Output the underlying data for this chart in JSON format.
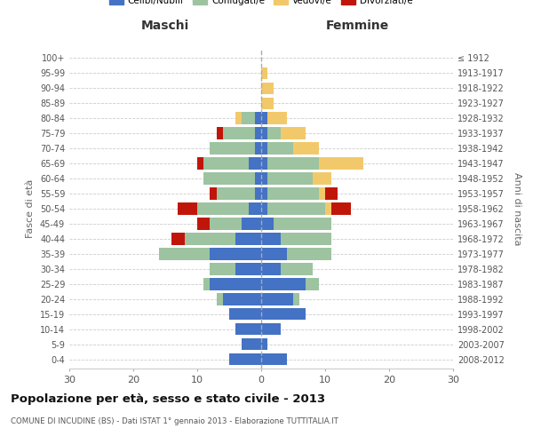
{
  "age_groups": [
    "0-4",
    "5-9",
    "10-14",
    "15-19",
    "20-24",
    "25-29",
    "30-34",
    "35-39",
    "40-44",
    "45-49",
    "50-54",
    "55-59",
    "60-64",
    "65-69",
    "70-74",
    "75-79",
    "80-84",
    "85-89",
    "90-94",
    "95-99",
    "100+"
  ],
  "birth_years": [
    "2008-2012",
    "2003-2007",
    "1998-2002",
    "1993-1997",
    "1988-1992",
    "1983-1987",
    "1978-1982",
    "1973-1977",
    "1968-1972",
    "1963-1967",
    "1958-1962",
    "1953-1957",
    "1948-1952",
    "1943-1947",
    "1938-1942",
    "1933-1937",
    "1928-1932",
    "1923-1927",
    "1918-1922",
    "1913-1917",
    "≤ 1912"
  ],
  "colors": {
    "celibi": "#4472C4",
    "coniugati": "#9DC3A0",
    "vedovi": "#F2C96A",
    "divorziati": "#C0160A"
  },
  "males": {
    "celibi": [
      5,
      3,
      4,
      5,
      6,
      8,
      4,
      8,
      4,
      3,
      2,
      1,
      1,
      2,
      1,
      1,
      1,
      0,
      0,
      0,
      0
    ],
    "coniugati": [
      0,
      0,
      0,
      0,
      1,
      1,
      4,
      8,
      8,
      5,
      8,
      6,
      8,
      7,
      7,
      5,
      2,
      0,
      0,
      0,
      0
    ],
    "vedovi": [
      0,
      0,
      0,
      0,
      0,
      0,
      0,
      0,
      0,
      0,
      0,
      0,
      0,
      0,
      0,
      0,
      1,
      0,
      0,
      0,
      0
    ],
    "divorziati": [
      0,
      0,
      0,
      0,
      0,
      0,
      0,
      0,
      2,
      2,
      3,
      1,
      0,
      1,
      0,
      1,
      0,
      0,
      0,
      0,
      0
    ]
  },
  "females": {
    "nubili": [
      4,
      1,
      3,
      7,
      5,
      7,
      3,
      4,
      3,
      2,
      1,
      1,
      1,
      1,
      1,
      1,
      1,
      0,
      0,
      0,
      0
    ],
    "coniugate": [
      0,
      0,
      0,
      0,
      1,
      2,
      5,
      7,
      8,
      9,
      9,
      8,
      7,
      8,
      4,
      2,
      0,
      0,
      0,
      0,
      0
    ],
    "vedove": [
      0,
      0,
      0,
      0,
      0,
      0,
      0,
      0,
      0,
      0,
      1,
      1,
      3,
      7,
      4,
      4,
      3,
      2,
      2,
      1,
      0
    ],
    "divorziate": [
      0,
      0,
      0,
      0,
      0,
      0,
      0,
      0,
      0,
      0,
      3,
      2,
      0,
      0,
      0,
      0,
      0,
      0,
      0,
      0,
      0
    ]
  },
  "xlim": 30,
  "title": "Popolazione per età, sesso e stato civile - 2013",
  "subtitle": "COMUNE DI INCUDINE (BS) - Dati ISTAT 1° gennaio 2013 - Elaborazione TUTTITALIA.IT",
  "ylabel_left": "Fasce di età",
  "ylabel_right": "Anni di nascita",
  "xlabel_left": "Maschi",
  "xlabel_right": "Femmine",
  "legend_labels": [
    "Celibi/Nubili",
    "Coniugati/e",
    "Vedovi/e",
    "Divorziati/e"
  ],
  "bg_color": "#FFFFFF",
  "plot_bg": "#FFFFFF",
  "grid_color": "#CCCCCC"
}
